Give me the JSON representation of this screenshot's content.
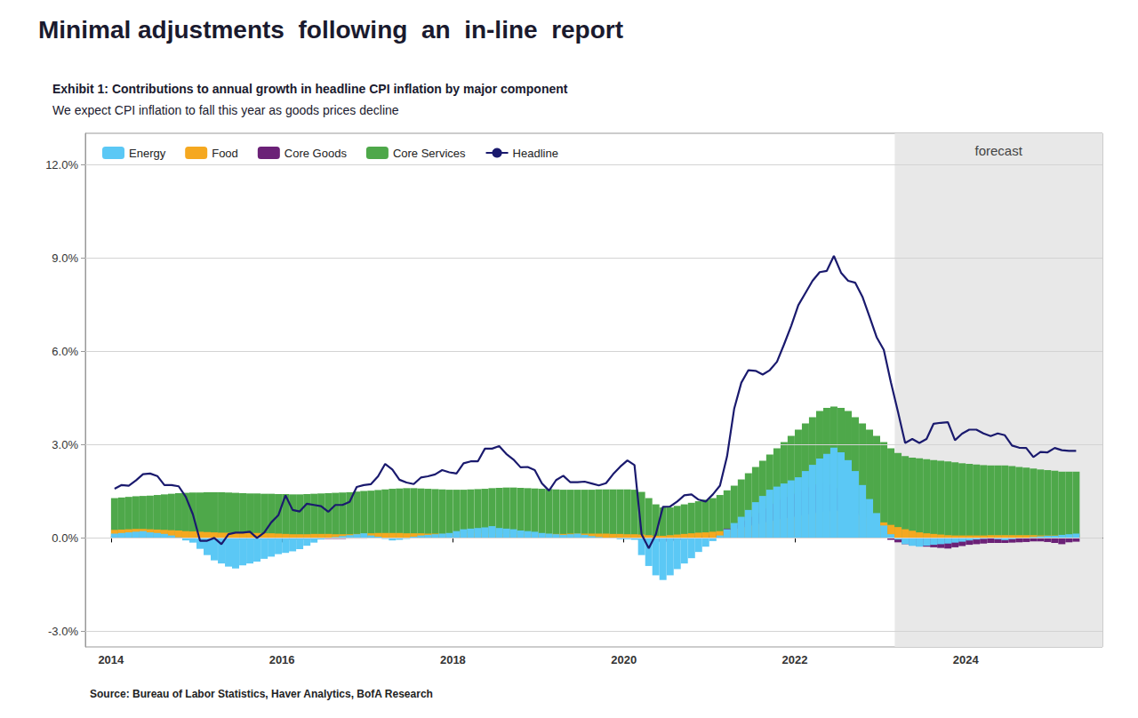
{
  "chart_data": {
    "type": "bar",
    "title": "Minimal adjustments  following  an  in-line  report",
    "exhibit_title": "Exhibit 1: Contributions to annual growth in headline CPI inflation by major component",
    "subtitle": "We expect CPI inflation to fall this year as goods prices decline",
    "source": {
      "label": "Source:",
      "text": "Bureau of Labor Statistics, Haver Analytics, BofA Research"
    },
    "forecast": {
      "start": 2023.17,
      "end": 2025.6,
      "label": "forecast",
      "color": "#E8E8E8"
    },
    "stacked": true,
    "grid": true,
    "legend": "upper left",
    "xlim": [
      2013.7,
      2025.6
    ],
    "xticks": [
      2014,
      2016,
      2018,
      2020,
      2022,
      2024
    ],
    "ylim": [
      -3.5,
      13.0
    ],
    "yticks": [
      {
        "value": -3.0,
        "label": "-3.0%"
      },
      {
        "value": 0.0,
        "label": "0.0%"
      },
      {
        "value": 3.0,
        "label": "3.0%"
      },
      {
        "value": 6.0,
        "label": "6.0%"
      },
      {
        "value": 9.0,
        "label": "9.0%"
      },
      {
        "value": 12.0,
        "label": "12.0%"
      }
    ],
    "x": [
      2014.042,
      2014.125,
      2014.208,
      2014.292,
      2014.375,
      2014.458,
      2014.542,
      2014.625,
      2014.708,
      2014.792,
      2014.875,
      2014.958,
      2015.042,
      2015.125,
      2015.208,
      2015.292,
      2015.375,
      2015.458,
      2015.542,
      2015.625,
      2015.708,
      2015.792,
      2015.875,
      2015.958,
      2016.042,
      2016.125,
      2016.208,
      2016.292,
      2016.375,
      2016.458,
      2016.542,
      2016.625,
      2016.708,
      2016.792,
      2016.875,
      2016.958,
      2017.042,
      2017.125,
      2017.208,
      2017.292,
      2017.375,
      2017.458,
      2017.542,
      2017.625,
      2017.708,
      2017.792,
      2017.875,
      2017.958,
      2018.042,
      2018.125,
      2018.208,
      2018.292,
      2018.375,
      2018.458,
      2018.542,
      2018.625,
      2018.708,
      2018.792,
      2018.875,
      2018.958,
      2019.042,
      2019.125,
      2019.208,
      2019.292,
      2019.375,
      2019.458,
      2019.542,
      2019.625,
      2019.708,
      2019.792,
      2019.875,
      2019.958,
      2020.042,
      2020.125,
      2020.208,
      2020.292,
      2020.375,
      2020.458,
      2020.542,
      2020.625,
      2020.708,
      2020.792,
      2020.875,
      2020.958,
      2021.042,
      2021.125,
      2021.208,
      2021.292,
      2021.375,
      2021.458,
      2021.542,
      2021.625,
      2021.708,
      2021.792,
      2021.875,
      2021.958,
      2022.042,
      2022.125,
      2022.208,
      2022.292,
      2022.375,
      2022.458,
      2022.542,
      2022.625,
      2022.708,
      2022.792,
      2022.875,
      2022.958,
      2023.042,
      2023.125,
      2023.208,
      2023.292,
      2023.375,
      2023.458,
      2023.542,
      2023.625,
      2023.708,
      2023.792,
      2023.875,
      2023.958,
      2024.042,
      2024.125,
      2024.208,
      2024.292,
      2024.375,
      2024.458,
      2024.542,
      2024.625,
      2024.708,
      2024.792,
      2024.875,
      2024.958,
      2025.042,
      2025.125,
      2025.208,
      2025.292
    ],
    "series": [
      {
        "name": "Energy",
        "type": "bar",
        "color": "#5BC8F5",
        "values": [
          0.14,
          0.16,
          0.18,
          0.2,
          0.22,
          0.18,
          0.16,
          0.13,
          0.08,
          0.02,
          -0.08,
          -0.15,
          -0.35,
          -0.55,
          -0.72,
          -0.82,
          -0.92,
          -0.98,
          -0.88,
          -0.82,
          -0.76,
          -0.67,
          -0.6,
          -0.52,
          -0.48,
          -0.43,
          -0.36,
          -0.25,
          -0.15,
          -0.05,
          0.0,
          0.03,
          0.06,
          0.09,
          0.12,
          0.15,
          0.08,
          0.04,
          -0.03,
          -0.08,
          -0.06,
          -0.03,
          0.04,
          0.08,
          0.1,
          0.12,
          0.14,
          0.16,
          0.22,
          0.28,
          0.3,
          0.32,
          0.34,
          0.38,
          0.32,
          0.3,
          0.28,
          0.24,
          0.22,
          0.2,
          0.16,
          0.14,
          0.12,
          0.1,
          0.12,
          0.14,
          0.1,
          0.06,
          0.03,
          0.01,
          -0.01,
          -0.04,
          -0.04,
          -0.06,
          -0.55,
          -0.9,
          -1.2,
          -1.35,
          -1.2,
          -1.0,
          -0.82,
          -0.65,
          -0.45,
          -0.28,
          -0.1,
          0.08,
          0.28,
          0.48,
          0.68,
          0.9,
          1.15,
          1.35,
          1.55,
          1.65,
          1.75,
          1.85,
          1.95,
          2.15,
          2.35,
          2.55,
          2.7,
          2.9,
          2.75,
          2.5,
          2.15,
          1.7,
          1.25,
          0.8,
          0.4,
          0.12,
          -0.05,
          -0.2,
          -0.25,
          -0.28,
          -0.25,
          -0.22,
          -0.2,
          -0.18,
          -0.15,
          -0.12,
          -0.08,
          -0.05,
          -0.03,
          -0.01,
          -0.04,
          -0.07,
          -0.04,
          -0.01,
          0.01,
          0.03,
          0.05,
          0.07,
          0.07,
          0.1,
          0.12,
          0.14
        ]
      },
      {
        "name": "Food",
        "type": "bar",
        "color": "#F5A820",
        "values": [
          0.26,
          0.27,
          0.28,
          0.29,
          0.29,
          0.28,
          0.27,
          0.26,
          0.25,
          0.24,
          0.22,
          0.21,
          0.2,
          0.19,
          0.18,
          0.17,
          0.17,
          0.17,
          0.17,
          0.16,
          0.16,
          0.15,
          0.15,
          0.14,
          0.13,
          0.12,
          0.12,
          0.12,
          0.13,
          0.13,
          0.13,
          0.12,
          0.12,
          0.12,
          0.13,
          0.14,
          0.15,
          0.16,
          0.16,
          0.16,
          0.16,
          0.15,
          0.15,
          0.15,
          0.14,
          0.14,
          0.13,
          0.13,
          0.14,
          0.14,
          0.15,
          0.15,
          0.14,
          0.13,
          0.13,
          0.12,
          0.12,
          0.12,
          0.12,
          0.13,
          0.13,
          0.13,
          0.13,
          0.13,
          0.14,
          0.14,
          0.14,
          0.14,
          0.14,
          0.14,
          0.13,
          0.13,
          0.12,
          0.12,
          0.11,
          0.09,
          0.07,
          0.07,
          0.09,
          0.11,
          0.13,
          0.15,
          0.17,
          0.18,
          0.2,
          0.22,
          0.26,
          0.3,
          0.35,
          0.4,
          0.45,
          0.5,
          0.55,
          0.6,
          0.64,
          0.68,
          0.72,
          0.76,
          0.8,
          0.84,
          0.86,
          0.88,
          0.86,
          0.82,
          0.77,
          0.72,
          0.65,
          0.58,
          0.5,
          0.42,
          0.35,
          0.28,
          0.23,
          0.18,
          0.15,
          0.13,
          0.11,
          0.09,
          0.08,
          0.08,
          0.08,
          0.08,
          0.08,
          0.09,
          0.09,
          0.09,
          0.09,
          0.09,
          0.09,
          0.09,
          0.08,
          0.08,
          0.08,
          0.08,
          0.08,
          0.09
        ]
      },
      {
        "name": "Core Goods",
        "type": "bar",
        "color": "#6B2177",
        "values": [
          0.06,
          0.06,
          0.07,
          0.07,
          0.07,
          0.06,
          0.05,
          0.04,
          0.03,
          0.02,
          0.01,
          0.0,
          -0.02,
          -0.03,
          -0.04,
          -0.05,
          -0.05,
          -0.06,
          -0.06,
          -0.06,
          -0.06,
          -0.05,
          -0.05,
          -0.05,
          -0.05,
          -0.05,
          -0.04,
          -0.04,
          -0.03,
          -0.03,
          -0.03,
          -0.03,
          -0.03,
          -0.02,
          -0.02,
          -0.02,
          -0.01,
          -0.01,
          -0.01,
          0.0,
          0.01,
          0.01,
          0.02,
          0.02,
          0.03,
          0.03,
          0.04,
          0.04,
          0.04,
          0.04,
          0.04,
          0.04,
          0.04,
          0.04,
          0.03,
          0.03,
          0.03,
          0.02,
          0.02,
          0.01,
          0.01,
          0.01,
          0.01,
          0.01,
          0.01,
          0.01,
          0.0,
          0.0,
          0.0,
          0.0,
          0.0,
          0.0,
          0.0,
          -0.02,
          -0.06,
          -0.1,
          -0.12,
          -0.12,
          -0.1,
          -0.06,
          -0.04,
          0.01,
          0.05,
          0.08,
          0.12,
          0.18,
          0.3,
          0.42,
          0.55,
          0.68,
          0.8,
          0.95,
          1.1,
          1.22,
          1.32,
          1.42,
          1.52,
          1.62,
          1.72,
          1.78,
          1.72,
          1.6,
          1.38,
          1.12,
          0.88,
          0.65,
          0.42,
          0.22,
          0.06,
          -0.06,
          -0.14,
          -0.2,
          -0.24,
          -0.26,
          -0.28,
          -0.3,
          -0.32,
          -0.34,
          -0.3,
          -0.26,
          -0.22,
          -0.2,
          -0.18,
          -0.16,
          -0.16,
          -0.16,
          -0.15,
          -0.14,
          -0.13,
          -0.11,
          -0.11,
          -0.13,
          -0.16,
          -0.2,
          -0.14,
          -0.12
        ]
      },
      {
        "name": "Core Services",
        "type": "bar",
        "color": "#4EA84A",
        "values": [
          1.28,
          1.3,
          1.32,
          1.34,
          1.35,
          1.36,
          1.38,
          1.4,
          1.42,
          1.44,
          1.45,
          1.46,
          1.46,
          1.47,
          1.47,
          1.47,
          1.46,
          1.45,
          1.44,
          1.43,
          1.43,
          1.42,
          1.42,
          1.41,
          1.41,
          1.4,
          1.4,
          1.41,
          1.42,
          1.43,
          1.44,
          1.45,
          1.46,
          1.47,
          1.49,
          1.51,
          1.52,
          1.54,
          1.56,
          1.58,
          1.59,
          1.6,
          1.6,
          1.59,
          1.58,
          1.57,
          1.56,
          1.55,
          1.55,
          1.55,
          1.56,
          1.57,
          1.58,
          1.6,
          1.61,
          1.62,
          1.62,
          1.61,
          1.6,
          1.59,
          1.58,
          1.57,
          1.56,
          1.55,
          1.55,
          1.55,
          1.55,
          1.55,
          1.56,
          1.56,
          1.56,
          1.56,
          1.56,
          1.55,
          1.48,
          1.28,
          1.08,
          0.98,
          0.98,
          1.03,
          1.08,
          1.13,
          1.18,
          1.23,
          1.28,
          1.38,
          1.53,
          1.68,
          1.88,
          2.08,
          2.28,
          2.48,
          2.68,
          2.88,
          3.08,
          3.28,
          3.48,
          3.68,
          3.88,
          4.08,
          4.18,
          4.22,
          4.18,
          4.08,
          3.88,
          3.68,
          3.48,
          3.28,
          3.08,
          2.88,
          2.73,
          2.63,
          2.58,
          2.56,
          2.53,
          2.5,
          2.48,
          2.46,
          2.43,
          2.4,
          2.38,
          2.36,
          2.34,
          2.33,
          2.33,
          2.33,
          2.31,
          2.28,
          2.26,
          2.23,
          2.2,
          2.18,
          2.16,
          2.13,
          2.13,
          2.13
        ]
      },
      {
        "name": "Headline",
        "type": "line",
        "color": "#1A1A6E",
        "values": [
          1.58,
          1.7,
          1.68,
          1.85,
          2.05,
          2.07,
          1.99,
          1.7,
          1.7,
          1.66,
          1.32,
          0.76,
          -0.09,
          -0.09,
          0.0,
          -0.2,
          0.12,
          0.17,
          0.17,
          0.2,
          0.0,
          0.17,
          0.5,
          0.73,
          1.37,
          0.9,
          0.85,
          1.1,
          1.06,
          1.02,
          0.84,
          1.06,
          1.06,
          1.16,
          1.64,
          1.7,
          1.73,
          1.98,
          2.38,
          2.2,
          1.87,
          1.78,
          1.73,
          1.94,
          1.98,
          2.04,
          2.18,
          2.11,
          2.07,
          2.4,
          2.46,
          2.46,
          2.87,
          2.87,
          2.95,
          2.7,
          2.52,
          2.27,
          2.28,
          2.18,
          1.75,
          1.52,
          1.86,
          2.0,
          1.79,
          1.79,
          1.81,
          1.75,
          1.69,
          1.76,
          2.05,
          2.29,
          2.49,
          2.34,
          0.12,
          -0.33,
          0.12,
          1.0,
          1.01,
          1.17,
          1.37,
          1.4,
          1.23,
          1.17,
          1.4,
          1.68,
          2.62,
          4.16,
          4.99,
          5.39,
          5.37,
          5.25,
          5.39,
          5.66,
          6.22,
          6.81,
          7.48,
          7.87,
          8.26,
          8.54,
          8.58,
          9.06,
          8.52,
          8.26,
          8.2,
          7.75,
          7.11,
          6.45,
          6.04,
          5.0,
          4.05,
          3.05,
          3.18,
          3.05,
          3.18,
          3.67,
          3.7,
          3.72,
          3.14,
          3.35,
          3.48,
          3.48,
          3.36,
          3.27,
          3.36,
          3.3,
          2.97,
          2.9,
          2.89,
          2.6,
          2.76,
          2.75,
          2.89,
          2.82,
          2.8,
          2.8
        ]
      }
    ]
  }
}
